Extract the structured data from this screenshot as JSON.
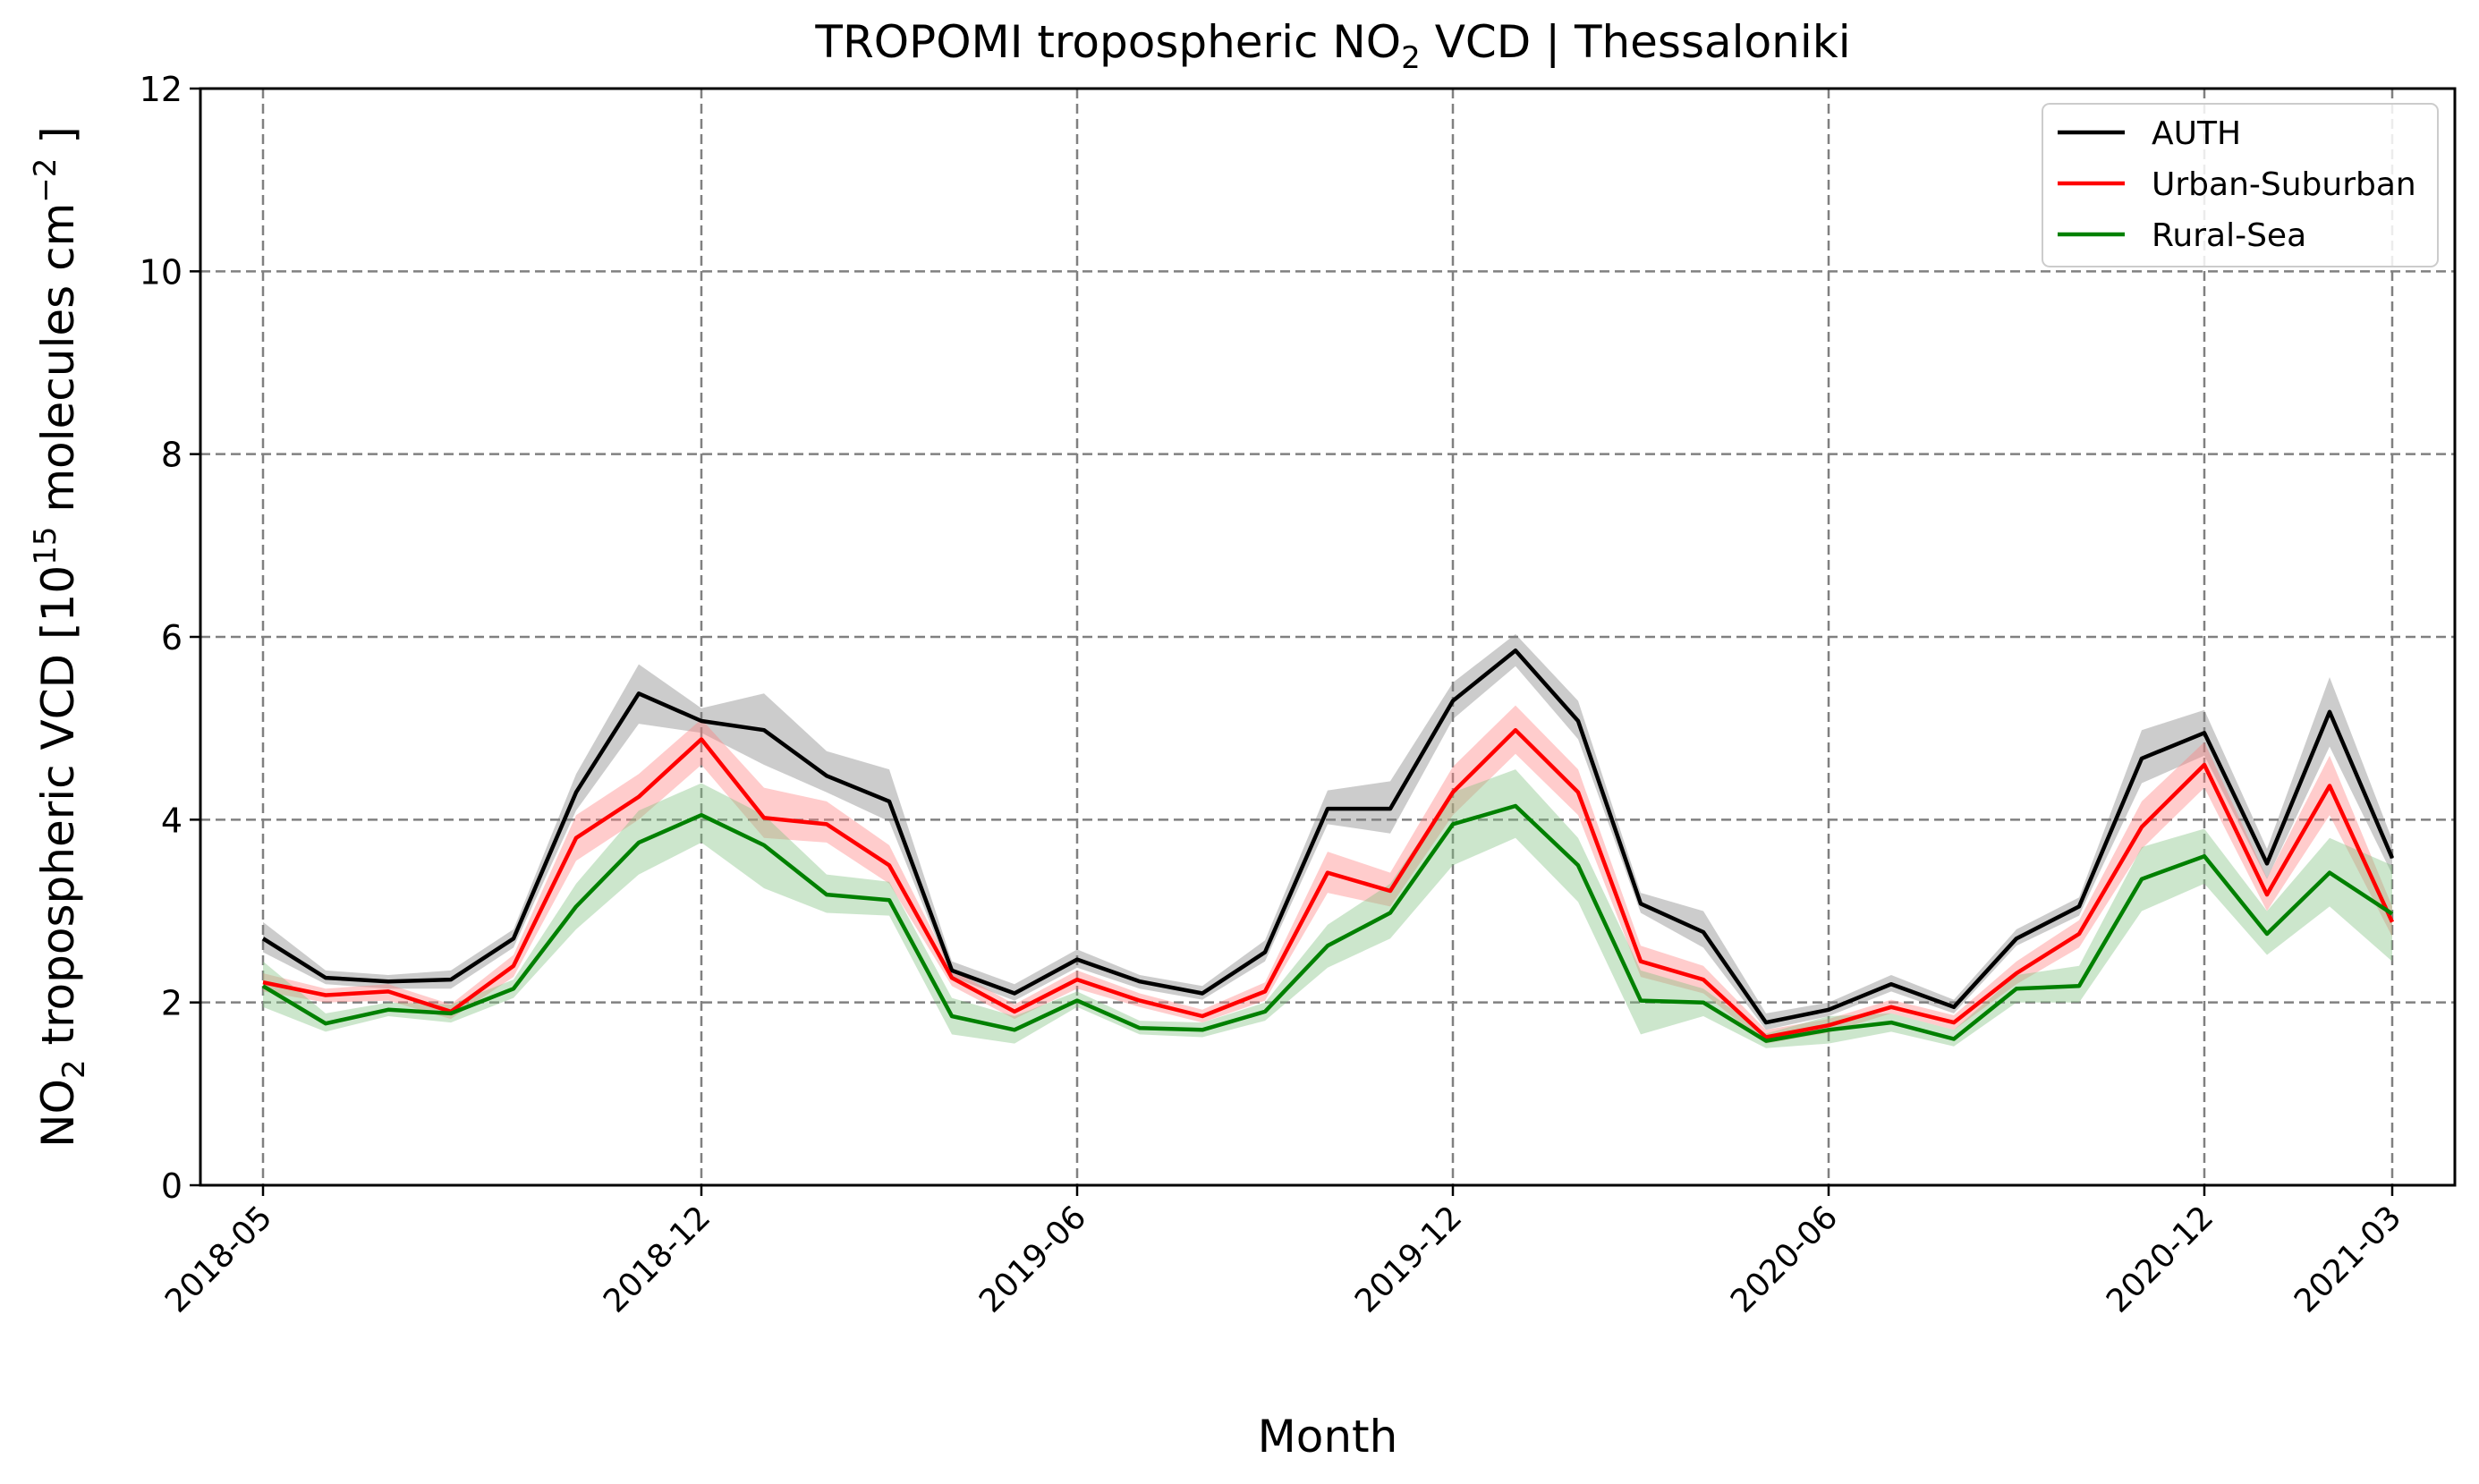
{
  "chart_data": {
    "type": "line",
    "title_parts": {
      "pre": "TROPOMI tropospheric NO",
      "sub": "2",
      "post": " VCD | Thessaloniki"
    },
    "xlabel": "Month",
    "ylabel_parts": {
      "a": "NO",
      "a_sub": "2",
      "b": " tropospheric VCD [10",
      "b_sup": "15",
      "c": " molecules cm",
      "c_sup": "−2",
      "d": " ]"
    },
    "ylim": [
      0,
      12
    ],
    "yticks": [
      0,
      2,
      4,
      6,
      8,
      10,
      12
    ],
    "xlim": [
      "2018-04",
      "2021-04"
    ],
    "xticks": [
      {
        "value": "2018-05",
        "label": "2018-05"
      },
      {
        "value": "2018-12",
        "label": "2018-12"
      },
      {
        "value": "2019-06",
        "label": "2019-06"
      },
      {
        "value": "2019-12",
        "label": "2019-12"
      },
      {
        "value": "2020-06",
        "label": "2020-06"
      },
      {
        "value": "2020-12",
        "label": "2020-12"
      },
      {
        "value": "2021-03",
        "label": "2021-03"
      }
    ],
    "grid": true,
    "legend_position": "top-right",
    "x": [
      "2018-05",
      "2018-06",
      "2018-07",
      "2018-08",
      "2018-09",
      "2018-10",
      "2018-11",
      "2018-12",
      "2019-01",
      "2019-02",
      "2019-03",
      "2019-04",
      "2019-05",
      "2019-06",
      "2019-07",
      "2019-08",
      "2019-09",
      "2019-10",
      "2019-11",
      "2019-12",
      "2020-01",
      "2020-02",
      "2020-03",
      "2020-04",
      "2020-05",
      "2020-06",
      "2020-07",
      "2020-08",
      "2020-09",
      "2020-10",
      "2020-11",
      "2020-12",
      "2021-01",
      "2021-02",
      "2021-03"
    ],
    "series": [
      {
        "name": "AUTH",
        "color": "#000000",
        "band_color": "#808080",
        "values": [
          2.7,
          2.27,
          2.23,
          2.25,
          2.7,
          4.3,
          5.38,
          5.08,
          4.98,
          4.48,
          4.2,
          2.35,
          2.1,
          2.47,
          2.23,
          2.1,
          2.55,
          4.12,
          4.12,
          5.3,
          5.85,
          5.08,
          3.08,
          2.77,
          1.78,
          1.92,
          2.2,
          1.95,
          2.7,
          3.05,
          4.67,
          4.95,
          3.52,
          5.18,
          3.58
        ],
        "lower": [
          2.55,
          2.2,
          2.15,
          2.15,
          2.6,
          4.1,
          5.05,
          4.95,
          4.6,
          4.3,
          3.98,
          2.28,
          2.02,
          2.38,
          2.15,
          2.03,
          2.45,
          3.95,
          3.85,
          5.1,
          5.68,
          4.88,
          2.98,
          2.6,
          1.7,
          1.85,
          2.12,
          1.88,
          2.62,
          2.95,
          4.4,
          4.7,
          3.35,
          4.8,
          3.4
        ],
        "upper": [
          2.88,
          2.35,
          2.3,
          2.35,
          2.8,
          4.5,
          5.7,
          5.22,
          5.38,
          4.75,
          4.55,
          2.45,
          2.2,
          2.58,
          2.3,
          2.18,
          2.68,
          4.32,
          4.42,
          5.5,
          6.03,
          5.3,
          3.2,
          3.0,
          1.88,
          2.0,
          2.3,
          2.03,
          2.8,
          3.15,
          4.98,
          5.2,
          3.68,
          5.56,
          3.78
        ]
      },
      {
        "name": "Urban-Suburban",
        "color": "#ff0000",
        "band_color": "#ff8080",
        "values": [
          2.22,
          2.08,
          2.12,
          1.9,
          2.4,
          3.8,
          4.25,
          4.88,
          4.02,
          3.95,
          3.5,
          2.27,
          1.9,
          2.25,
          2.02,
          1.85,
          2.12,
          3.42,
          3.22,
          4.3,
          4.98,
          4.3,
          2.45,
          2.25,
          1.62,
          1.75,
          1.95,
          1.78,
          2.32,
          2.75,
          3.92,
          4.6,
          3.18,
          4.37,
          2.88
        ],
        "lower": [
          2.12,
          2.0,
          2.02,
          1.82,
          2.28,
          3.55,
          4.0,
          4.6,
          3.8,
          3.75,
          3.3,
          2.18,
          1.82,
          2.15,
          1.95,
          1.78,
          2.02,
          3.2,
          3.05,
          4.05,
          4.72,
          4.05,
          2.28,
          2.1,
          1.55,
          1.67,
          1.88,
          1.7,
          2.2,
          2.6,
          3.68,
          4.35,
          3.0,
          4.05,
          2.72
        ],
        "upper": [
          2.32,
          2.15,
          2.2,
          1.98,
          2.52,
          4.05,
          4.5,
          5.1,
          4.35,
          4.2,
          3.72,
          2.36,
          1.98,
          2.35,
          2.1,
          1.92,
          2.22,
          3.65,
          3.42,
          4.58,
          5.25,
          4.55,
          2.62,
          2.4,
          1.7,
          1.82,
          2.03,
          1.86,
          2.45,
          2.9,
          4.2,
          4.85,
          3.36,
          4.7,
          3.05
        ]
      },
      {
        "name": "Rural-Sea",
        "color": "#008000",
        "band_color": "#80c080",
        "values": [
          2.18,
          1.77,
          1.92,
          1.88,
          2.15,
          3.05,
          3.75,
          4.05,
          3.72,
          3.18,
          3.12,
          1.85,
          1.7,
          2.02,
          1.72,
          1.7,
          1.9,
          2.62,
          2.98,
          3.95,
          4.15,
          3.5,
          2.02,
          2.0,
          1.58,
          1.7,
          1.78,
          1.6,
          2.15,
          2.18,
          3.35,
          3.6,
          2.75,
          3.42,
          2.97
        ],
        "lower": [
          1.95,
          1.68,
          1.85,
          1.78,
          2.05,
          2.8,
          3.4,
          3.75,
          3.25,
          2.98,
          2.95,
          1.65,
          1.55,
          1.95,
          1.65,
          1.62,
          1.8,
          2.38,
          2.7,
          3.5,
          3.8,
          3.1,
          1.65,
          1.85,
          1.5,
          1.55,
          1.68,
          1.52,
          2.0,
          2.0,
          3.0,
          3.3,
          2.52,
          3.05,
          2.45
        ],
        "upper": [
          2.45,
          1.88,
          2.0,
          1.98,
          2.25,
          3.3,
          4.1,
          4.4,
          4.05,
          3.4,
          3.32,
          2.05,
          1.85,
          2.12,
          1.8,
          1.78,
          2.0,
          2.85,
          3.3,
          4.3,
          4.55,
          3.8,
          2.35,
          2.15,
          1.66,
          1.85,
          1.88,
          1.7,
          2.3,
          2.4,
          3.7,
          3.9,
          3.0,
          3.8,
          3.5
        ]
      }
    ]
  }
}
